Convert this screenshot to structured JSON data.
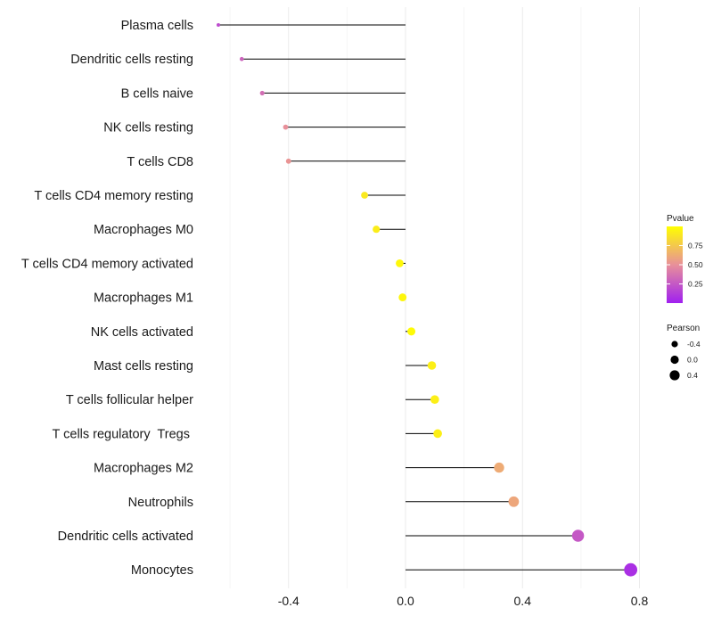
{
  "chart_data": {
    "type": "lollipop",
    "title": "",
    "xlabel": "",
    "ylabel": "",
    "xlim": [
      -0.6,
      0.8
    ],
    "xticks": [
      {
        "value": -0.4,
        "label": "-0.4"
      },
      {
        "value": 0.0,
        "label": "0.0"
      },
      {
        "value": 0.4,
        "label": "0.4"
      },
      {
        "value": 0.8,
        "label": "0.8"
      }
    ],
    "baseline": 0.0,
    "points": [
      {
        "category": "Plasma cells",
        "pearson": -0.64,
        "pvalue": 0.2
      },
      {
        "category": "Dendritic cells resting",
        "pearson": -0.56,
        "pvalue": 0.3
      },
      {
        "category": "B cells naive",
        "pearson": -0.49,
        "pvalue": 0.35
      },
      {
        "category": "NK cells resting",
        "pearson": -0.41,
        "pvalue": 0.5
      },
      {
        "category": "T cells CD8",
        "pearson": -0.4,
        "pvalue": 0.52
      },
      {
        "category": "T cells CD4 memory resting",
        "pearson": -0.14,
        "pvalue": 0.9
      },
      {
        "category": "Macrophages M0",
        "pearson": -0.1,
        "pvalue": 0.92
      },
      {
        "category": "T cells CD4 memory activated",
        "pearson": -0.02,
        "pvalue": 0.97
      },
      {
        "category": "Macrophages M1",
        "pearson": -0.01,
        "pvalue": 0.96
      },
      {
        "category": "NK cells activated",
        "pearson": 0.02,
        "pvalue": 0.98
      },
      {
        "category": "Mast cells resting",
        "pearson": 0.09,
        "pvalue": 0.93
      },
      {
        "category": "T cells follicular helper",
        "pearson": 0.1,
        "pvalue": 0.93
      },
      {
        "category": "T cells regulatory  Tregs ",
        "pearson": 0.11,
        "pvalue": 0.93
      },
      {
        "category": "Macrophages M2",
        "pearson": 0.32,
        "pvalue": 0.62
      },
      {
        "category": "Neutrophils",
        "pearson": 0.37,
        "pvalue": 0.6
      },
      {
        "category": "Dendritic cells activated",
        "pearson": 0.59,
        "pvalue": 0.25
      },
      {
        "category": "Monocytes",
        "pearson": 0.77,
        "pvalue": 0.07
      }
    ],
    "legend_color": {
      "title": "Pvalue",
      "range": [
        0.0,
        1.0
      ],
      "ticks": [
        {
          "value": 0.75,
          "label": "0.75"
        },
        {
          "value": 0.5,
          "label": "0.50"
        },
        {
          "value": 0.25,
          "label": "0.25"
        }
      ],
      "low_color": "#a020f0",
      "mid_color": "#e8909a",
      "high_color": "#ffff00"
    },
    "legend_size": {
      "title": "Pearson",
      "items": [
        {
          "value": -0.4,
          "label": "-0.4"
        },
        {
          "value": 0.0,
          "label": "0.0"
        },
        {
          "value": 0.4,
          "label": "0.4"
        }
      ]
    }
  }
}
